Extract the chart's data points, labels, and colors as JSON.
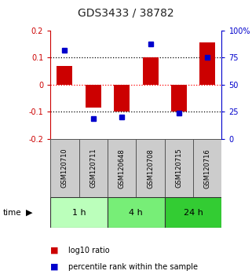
{
  "title": "GDS3433 / 38782",
  "samples": [
    "GSM120710",
    "GSM120711",
    "GSM120648",
    "GSM120708",
    "GSM120715",
    "GSM120716"
  ],
  "log10_ratio": [
    0.07,
    -0.085,
    -0.1,
    0.1,
    -0.1,
    0.155
  ],
  "percentile_rank": [
    82,
    19,
    20,
    88,
    24,
    75
  ],
  "time_groups": [
    {
      "label": "1 h",
      "samples": [
        0,
        1
      ],
      "color": "#bbffbb"
    },
    {
      "label": "4 h",
      "samples": [
        2,
        3
      ],
      "color": "#77ee77"
    },
    {
      "label": "24 h",
      "samples": [
        4,
        5
      ],
      "color": "#33cc33"
    }
  ],
  "bar_color": "#cc0000",
  "dot_color": "#0000cc",
  "ylim_left": [
    -0.2,
    0.2
  ],
  "ylim_right": [
    0,
    100
  ],
  "yticks_left": [
    -0.2,
    -0.1,
    0.0,
    0.1,
    0.2
  ],
  "yticks_right": [
    0,
    25,
    50,
    75,
    100
  ],
  "background_color": "#ffffff",
  "bar_width": 0.55,
  "left_axis_color": "#cc0000",
  "right_axis_color": "#0000cc",
  "sample_box_color": "#cccccc",
  "hline_zero_color": "#ff0000",
  "hline_color": "#000000"
}
